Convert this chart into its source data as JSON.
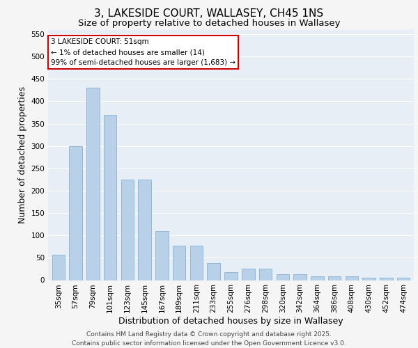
{
  "title": "3, LAKESIDE COURT, WALLASEY, CH45 1NS",
  "subtitle": "Size of property relative to detached houses in Wallasey",
  "xlabel": "Distribution of detached houses by size in Wallasey",
  "ylabel": "Number of detached properties",
  "categories": [
    "35sqm",
    "57sqm",
    "79sqm",
    "101sqm",
    "123sqm",
    "145sqm",
    "167sqm",
    "189sqm",
    "211sqm",
    "233sqm",
    "255sqm",
    "276sqm",
    "298sqm",
    "320sqm",
    "342sqm",
    "364sqm",
    "386sqm",
    "408sqm",
    "430sqm",
    "452sqm",
    "474sqm"
  ],
  "values": [
    57,
    300,
    430,
    370,
    225,
    225,
    110,
    77,
    77,
    38,
    18,
    25,
    25,
    13,
    13,
    9,
    9,
    9,
    5,
    5,
    5
  ],
  "bar_color": "#b8d0e8",
  "bar_edge_color": "#7aaacf",
  "ylim": [
    0,
    560
  ],
  "yticks": [
    0,
    50,
    100,
    150,
    200,
    250,
    300,
    350,
    400,
    450,
    500,
    550
  ],
  "annotation_title": "3 LAKESIDE COURT: 51sqm",
  "annotation_line1": "← 1% of detached houses are smaller (14)",
  "annotation_line2": "99% of semi-detached houses are larger (1,683) →",
  "annotation_box_facecolor": "#ffffff",
  "annotation_box_edgecolor": "#cc0000",
  "footer_line1": "Contains HM Land Registry data © Crown copyright and database right 2025.",
  "footer_line2": "Contains public sector information licensed under the Open Government Licence v3.0.",
  "background_color": "#e8eef5",
  "grid_color": "#ffffff",
  "fig_facecolor": "#f5f5f5",
  "title_fontsize": 11,
  "subtitle_fontsize": 9.5,
  "axis_label_fontsize": 9,
  "tick_fontsize": 7.5,
  "annotation_fontsize": 7.5,
  "footer_fontsize": 6.5
}
